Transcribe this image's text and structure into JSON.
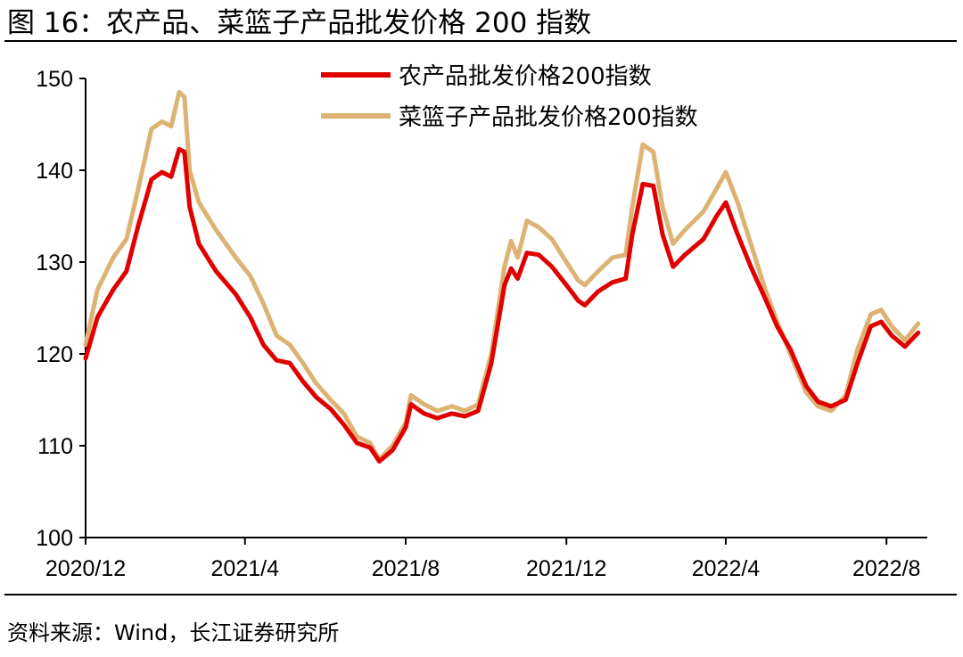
{
  "header": {
    "figure_title": "图 16：农产品、菜篮子产品批发价格 200 指数"
  },
  "footer": {
    "source": "资料来源：Wind，长江证券研究所"
  },
  "colors": {
    "series_1": "#e00000",
    "series_2": "#dcb373",
    "axis": "#000000"
  },
  "chart_data": {
    "type": "line",
    "title": "",
    "xlabel": "",
    "ylabel": "",
    "ylim": [
      100,
      150
    ],
    "yticks": [
      100,
      110,
      120,
      130,
      140,
      150
    ],
    "xlim": [
      "2020-12-01",
      "2022-09-01"
    ],
    "xticks": [
      {
        "date": "2020-12-01",
        "label": "2020/12"
      },
      {
        "date": "2021-04-01",
        "label": "2021/4"
      },
      {
        "date": "2021-08-01",
        "label": "2021/8"
      },
      {
        "date": "2021-12-01",
        "label": "2021/12"
      },
      {
        "date": "2022-04-01",
        "label": "2022/4"
      },
      {
        "date": "2022-08-01",
        "label": "2022/8"
      }
    ],
    "grid": false,
    "legend_position": "top-right",
    "series": [
      {
        "name": "农产品批发价格200指数",
        "color": "#e00000",
        "points": [
          [
            "2020-12-01",
            119.5
          ],
          [
            "2020-12-10",
            124.0
          ],
          [
            "2020-12-22",
            127.0
          ],
          [
            "2021-01-01",
            129.0
          ],
          [
            "2021-01-10",
            134.0
          ],
          [
            "2021-01-20",
            139.0
          ],
          [
            "2021-01-28",
            139.8
          ],
          [
            "2021-02-04",
            139.3
          ],
          [
            "2021-02-10",
            142.3
          ],
          [
            "2021-02-14",
            142.0
          ],
          [
            "2021-02-18",
            136.0
          ],
          [
            "2021-02-25",
            132.0
          ],
          [
            "2021-03-10",
            129.0
          ],
          [
            "2021-03-25",
            126.5
          ],
          [
            "2021-04-05",
            124.0
          ],
          [
            "2021-04-15",
            121.0
          ],
          [
            "2021-04-25",
            119.3
          ],
          [
            "2021-05-05",
            119.0
          ],
          [
            "2021-05-15",
            117.0
          ],
          [
            "2021-05-25",
            115.3
          ],
          [
            "2021-06-05",
            114.0
          ],
          [
            "2021-06-15",
            112.3
          ],
          [
            "2021-06-25",
            110.3
          ],
          [
            "2021-07-05",
            109.8
          ],
          [
            "2021-07-12",
            108.3
          ],
          [
            "2021-07-22",
            109.5
          ],
          [
            "2021-08-01",
            112.0
          ],
          [
            "2021-08-05",
            114.5
          ],
          [
            "2021-08-15",
            113.5
          ],
          [
            "2021-08-25",
            113.0
          ],
          [
            "2021-09-05",
            113.5
          ],
          [
            "2021-09-15",
            113.2
          ],
          [
            "2021-09-25",
            113.8
          ],
          [
            "2021-10-05",
            119.0
          ],
          [
            "2021-10-15",
            127.5
          ],
          [
            "2021-10-20",
            129.3
          ],
          [
            "2021-10-25",
            128.2
          ],
          [
            "2021-11-01",
            131.0
          ],
          [
            "2021-11-10",
            130.8
          ],
          [
            "2021-11-20",
            129.5
          ],
          [
            "2021-12-01",
            127.5
          ],
          [
            "2021-12-10",
            125.8
          ],
          [
            "2021-12-15",
            125.3
          ],
          [
            "2021-12-25",
            126.8
          ],
          [
            "2022-01-05",
            127.8
          ],
          [
            "2022-01-15",
            128.2
          ],
          [
            "2022-01-20",
            133.0
          ],
          [
            "2022-01-28",
            138.5
          ],
          [
            "2022-02-05",
            138.3
          ],
          [
            "2022-02-12",
            133.0
          ],
          [
            "2022-02-20",
            129.5
          ],
          [
            "2022-03-01",
            130.8
          ],
          [
            "2022-03-15",
            132.5
          ],
          [
            "2022-03-25",
            135.0
          ],
          [
            "2022-04-01",
            136.5
          ],
          [
            "2022-04-10",
            133.0
          ],
          [
            "2022-04-20",
            129.5
          ],
          [
            "2022-05-01",
            126.0
          ],
          [
            "2022-05-10",
            123.0
          ],
          [
            "2022-05-20",
            120.5
          ],
          [
            "2022-06-01",
            116.5
          ],
          [
            "2022-06-10",
            114.8
          ],
          [
            "2022-06-20",
            114.3
          ],
          [
            "2022-07-01",
            115.0
          ],
          [
            "2022-07-10",
            119.0
          ],
          [
            "2022-07-20",
            123.0
          ],
          [
            "2022-07-28",
            123.5
          ],
          [
            "2022-08-05",
            122.0
          ],
          [
            "2022-08-15",
            120.8
          ],
          [
            "2022-08-25",
            122.3
          ]
        ]
      },
      {
        "name": "菜篮子产品批发价格200指数",
        "color": "#dcb373",
        "points": [
          [
            "2020-12-01",
            121.0
          ],
          [
            "2020-12-10",
            127.0
          ],
          [
            "2020-12-22",
            130.5
          ],
          [
            "2021-01-01",
            132.5
          ],
          [
            "2021-01-10",
            138.0
          ],
          [
            "2021-01-20",
            144.5
          ],
          [
            "2021-01-28",
            145.3
          ],
          [
            "2021-02-04",
            144.8
          ],
          [
            "2021-02-10",
            148.5
          ],
          [
            "2021-02-14",
            148.0
          ],
          [
            "2021-02-18",
            140.0
          ],
          [
            "2021-02-25",
            136.5
          ],
          [
            "2021-03-10",
            133.5
          ],
          [
            "2021-03-25",
            130.5
          ],
          [
            "2021-04-05",
            128.5
          ],
          [
            "2021-04-15",
            125.5
          ],
          [
            "2021-04-25",
            122.0
          ],
          [
            "2021-05-05",
            121.0
          ],
          [
            "2021-05-15",
            119.0
          ],
          [
            "2021-05-25",
            116.8
          ],
          [
            "2021-06-05",
            115.0
          ],
          [
            "2021-06-15",
            113.5
          ],
          [
            "2021-06-25",
            111.0
          ],
          [
            "2021-07-05",
            110.3
          ],
          [
            "2021-07-12",
            108.5
          ],
          [
            "2021-07-22",
            110.0
          ],
          [
            "2021-08-01",
            112.5
          ],
          [
            "2021-08-05",
            115.5
          ],
          [
            "2021-08-15",
            114.5
          ],
          [
            "2021-08-25",
            113.8
          ],
          [
            "2021-09-05",
            114.3
          ],
          [
            "2021-09-15",
            113.8
          ],
          [
            "2021-09-25",
            114.5
          ],
          [
            "2021-10-05",
            120.0
          ],
          [
            "2021-10-15",
            129.5
          ],
          [
            "2021-10-20",
            132.3
          ],
          [
            "2021-10-25",
            130.5
          ],
          [
            "2021-11-01",
            134.5
          ],
          [
            "2021-11-10",
            133.8
          ],
          [
            "2021-11-20",
            132.5
          ],
          [
            "2021-12-01",
            130.0
          ],
          [
            "2021-12-10",
            128.0
          ],
          [
            "2021-12-15",
            127.5
          ],
          [
            "2021-12-25",
            129.0
          ],
          [
            "2022-01-05",
            130.5
          ],
          [
            "2022-01-15",
            130.8
          ],
          [
            "2022-01-20",
            136.0
          ],
          [
            "2022-01-28",
            142.8
          ],
          [
            "2022-02-05",
            142.0
          ],
          [
            "2022-02-12",
            136.0
          ],
          [
            "2022-02-20",
            132.0
          ],
          [
            "2022-03-01",
            133.5
          ],
          [
            "2022-03-15",
            135.5
          ],
          [
            "2022-03-25",
            138.0
          ],
          [
            "2022-04-01",
            139.8
          ],
          [
            "2022-04-10",
            136.5
          ],
          [
            "2022-04-20",
            132.0
          ],
          [
            "2022-05-01",
            127.0
          ],
          [
            "2022-05-10",
            123.5
          ],
          [
            "2022-05-20",
            120.0
          ],
          [
            "2022-06-01",
            115.8
          ],
          [
            "2022-06-10",
            114.3
          ],
          [
            "2022-06-20",
            113.8
          ],
          [
            "2022-07-01",
            115.5
          ],
          [
            "2022-07-10",
            120.5
          ],
          [
            "2022-07-20",
            124.3
          ],
          [
            "2022-07-28",
            124.8
          ],
          [
            "2022-08-05",
            123.0
          ],
          [
            "2022-08-15",
            121.5
          ],
          [
            "2022-08-25",
            123.3
          ]
        ]
      }
    ]
  }
}
